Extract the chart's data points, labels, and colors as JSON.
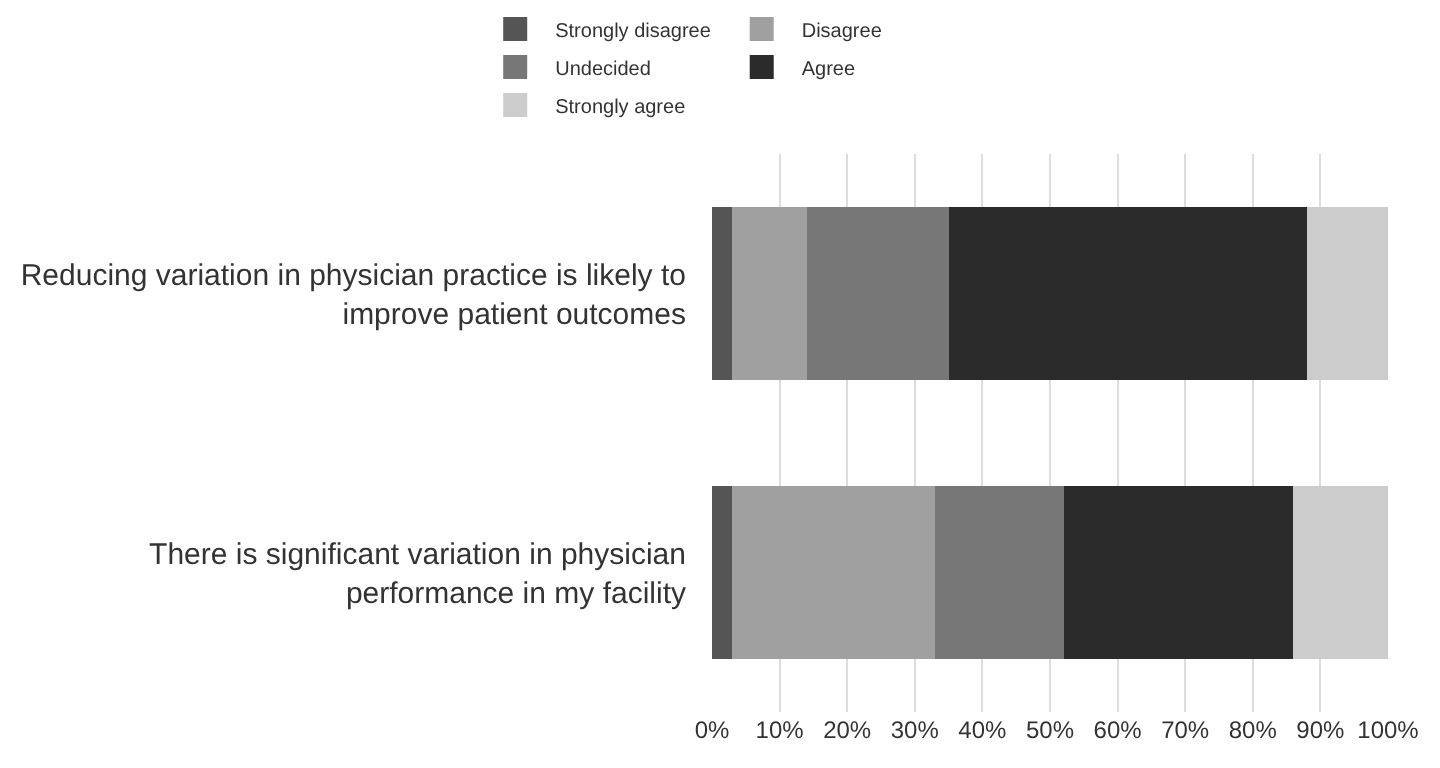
{
  "chart_data": {
    "type": "bar",
    "orientation": "horizontal",
    "stacked": true,
    "categories": [
      "Reducing variation in physician practice is likely to improve patient outcomes",
      "There is significant variation in physician performance in my facility"
    ],
    "series": [
      {
        "name": "Strongly disagree",
        "color": "#555555",
        "values": [
          3,
          3
        ]
      },
      {
        "name": "Disagree",
        "color": "#a0a0a0",
        "values": [
          11,
          30
        ]
      },
      {
        "name": "Undecided",
        "color": "#777777",
        "values": [
          21,
          19
        ]
      },
      {
        "name": "Agree",
        "color": "#2b2b2b",
        "values": [
          53,
          34
        ]
      },
      {
        "name": "Strongly agree",
        "color": "#cccccc",
        "values": [
          12,
          14
        ]
      }
    ],
    "xlim": [
      0,
      100
    ],
    "xticks": [
      {
        "value": 0,
        "label": "0%"
      },
      {
        "value": 10,
        "label": "10%"
      },
      {
        "value": 20,
        "label": "20%"
      },
      {
        "value": 30,
        "label": "30%"
      },
      {
        "value": 40,
        "label": "40%"
      },
      {
        "value": 50,
        "label": "50%"
      },
      {
        "value": 60,
        "label": "60%"
      },
      {
        "value": 70,
        "label": "70%"
      },
      {
        "value": 80,
        "label": "80%"
      },
      {
        "value": 90,
        "label": "90%"
      },
      {
        "value": 100,
        "label": "100%"
      }
    ],
    "grid": "x",
    "legend": "top"
  }
}
